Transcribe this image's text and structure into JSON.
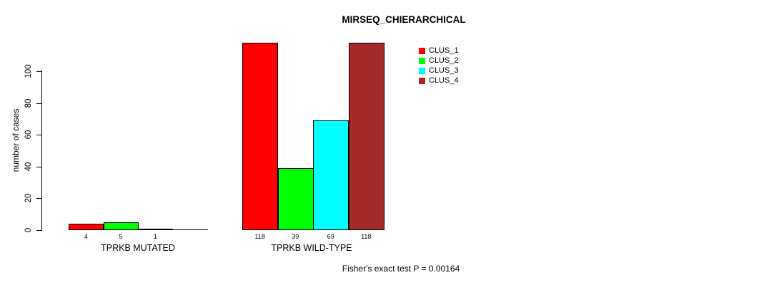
{
  "chart_data": {
    "type": "bar",
    "title": "MIRSEQ_CHIERARCHICAL",
    "ylabel": "number of cases",
    "xlabel": "",
    "yticks": [
      0,
      20,
      40,
      60,
      80,
      100
    ],
    "ylim": [
      0,
      120
    ],
    "grid": false,
    "background_color": "#FFFFFF",
    "axis_color": "#000000",
    "categories": [
      "TPRKB MUTATED",
      "TPRKB WILD-TYPE"
    ],
    "series": [
      {
        "name": "CLUS_1",
        "color": "#FF0000",
        "values": [
          4,
          118
        ]
      },
      {
        "name": "CLUS_2",
        "color": "#00FF00",
        "values": [
          5,
          39
        ]
      },
      {
        "name": "CLUS_3",
        "color": "#00FFFF",
        "values": [
          1,
          69
        ]
      },
      {
        "name": "CLUS_4",
        "color": "#A52A2A",
        "values": [
          0,
          118
        ]
      }
    ],
    "bar_value_labels": [
      [
        "4",
        "5",
        "1",
        ""
      ],
      [
        "118",
        "39",
        "69",
        "118"
      ]
    ],
    "legend": {
      "position": "top-right",
      "entries": [
        "CLUS_1",
        "CLUS_2",
        "CLUS_3",
        "CLUS_4"
      ]
    },
    "annotation": "Fisher's exact test P = 0.00164"
  }
}
